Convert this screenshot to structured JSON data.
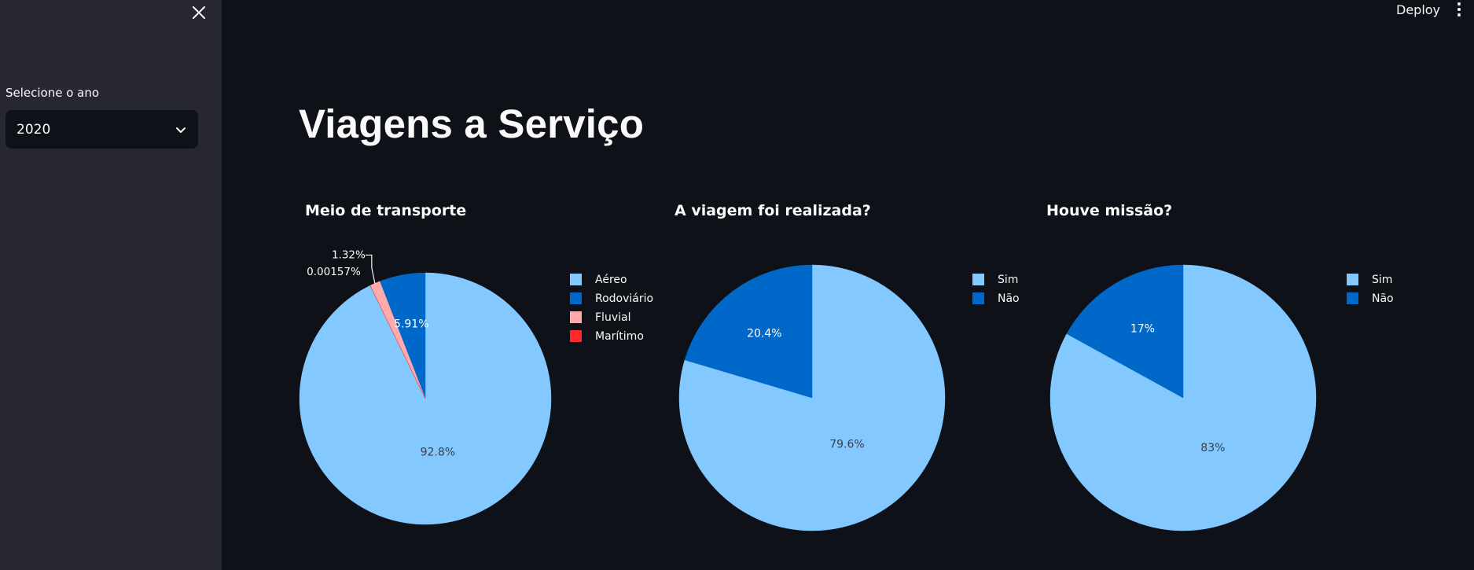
{
  "sidebar": {
    "select_label": "Selecione o ano",
    "select_value": "2020",
    "close_icon": "close-icon",
    "chevron_icon": "chevron-down-icon"
  },
  "header": {
    "deploy_label": "Deploy",
    "menu_icon": "vertical-dots-icon"
  },
  "main": {
    "title": "Viagens a Serviço"
  },
  "colors": {
    "background": "#0e1117",
    "sidebar": "#262730",
    "light_blue": "#83c9ff",
    "dark_blue": "#0068c9",
    "pink": "#ffabab",
    "red": "#ff2b2b"
  },
  "chart_data": [
    {
      "type": "pie",
      "title": "Meio de transporte",
      "labels": [
        "Aéreo",
        "Rodoviário",
        "Fluvial",
        "Marítimo"
      ],
      "values": [
        92.8,
        5.91,
        1.32,
        0.00157
      ],
      "value_labels": [
        "92.8%",
        "5.91%",
        "1.32%",
        "0.00157%"
      ],
      "colors": [
        "#83c9ff",
        "#0068c9",
        "#ffabab",
        "#ff2b2b"
      ],
      "legend": "right"
    },
    {
      "type": "pie",
      "title": "A viagem foi realizada?",
      "labels": [
        "Sim",
        "Não"
      ],
      "values": [
        79.6,
        20.4
      ],
      "value_labels": [
        "79.6%",
        "20.4%"
      ],
      "colors": [
        "#83c9ff",
        "#0068c9"
      ],
      "legend": "right"
    },
    {
      "type": "pie",
      "title": "Houve missão?",
      "labels": [
        "Sim",
        "Não"
      ],
      "values": [
        83,
        17
      ],
      "value_labels": [
        "83%",
        "17%"
      ],
      "colors": [
        "#83c9ff",
        "#0068c9"
      ],
      "legend": "right"
    }
  ]
}
